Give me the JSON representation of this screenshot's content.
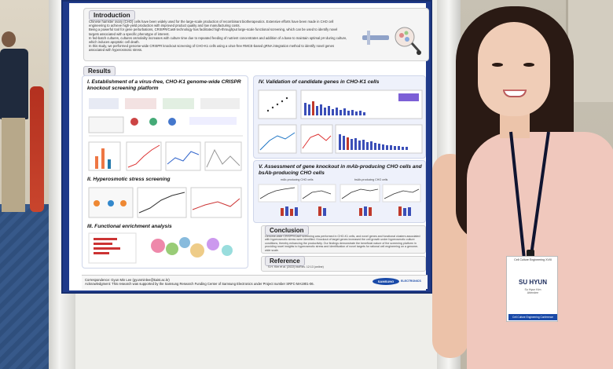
{
  "poster": {
    "intro_title": "Introduction",
    "intro_lines": [
      "Chinese hamster ovary (CHO) cells have been widely used for the large-scale production of recombinant biotherapeutics. Extensive efforts have been made in CHO cell engineering to achieve high-yield production with improved product quality and low manufacturing costs.",
      "Being a powerful tool for gene perturbations, CRISPR/Cas9 technology has facilitated high-throughput large-scale functional screening, which can be used to identify novel targets associated with a specific phenotype of interest.",
      "In fed-batch cultures, cultures osmolality increases with culture time due to repeated feeding of nutrient concentrates and addition of a base to maintain optimal pH during culture, which induces apoptotic cell death.",
      "In this study, we performed genome-wide CRISPR knockout screening of CHO-K1 cells using a virus-free RMCE-based gRNA integration method to identify novel genes associated with hyperosmotic stress."
    ],
    "results_title": "Results",
    "section1": "I. Establishment of a virus-free, CHO-K1 genome-wide CRISPR knockout screening platform",
    "section2": "II. Hyperosmotic stress screening",
    "section3": "III. Functional enrichment analysis",
    "section4": "IV. Validation of candidate genes in CHO-K1 cells",
    "section5": "V. Assessment of gene knockout in mAb-producing CHO cells and bsAb-producing CHO cells",
    "panel5_label_a": "mAb-producing CHO cells",
    "panel5_label_b": "bsAb-producing CHO cells",
    "conclusion_title": "Conclusion",
    "conclusion_text": "Genome-wide CRISPR/Cas9 screening was performed in CHO-K1 cells, and novel genes and functional clusters associated with hyperosmotic stress were identified. Knockout of target genes increased the cell growth under hyperosmotic culture conditions, thereby enhancing the productivity. Our findings demonstrate the beneficial nature of the screening platform in providing novel insights to hyperosmotic stress and identification of novel targets for rational cell engineering on a genome-wide scale.",
    "reference_title": "Reference",
    "reference_text": "S.H. Kim et al. (2022) bioRxiv. 12:13 (online)",
    "correspondence": "Correspondence: Gyun Min Lee (gyunminlee@kaist.ac.kr)",
    "acknowledgment": "Acknowledgment: This research was supported by the Samsung Research Funding Center of Samsung Electronics under Project number SRFC-MA1901-06.",
    "logo_text": "SAMSUNG",
    "logo_sub": "ELECTRONICS"
  },
  "badge": {
    "event": "Cell Culture Engineering XVIII",
    "name": "SU HYUN",
    "small": "Su Hyun Kim",
    "small2": "Attendee",
    "bar": "Cell Culture Engineering Conference"
  },
  "colors": {
    "poster_border": "#1f3a8a",
    "panel_bg": "#eef1fb",
    "bar_blue": "#3b4fb8",
    "bar_red": "#c0392b"
  }
}
